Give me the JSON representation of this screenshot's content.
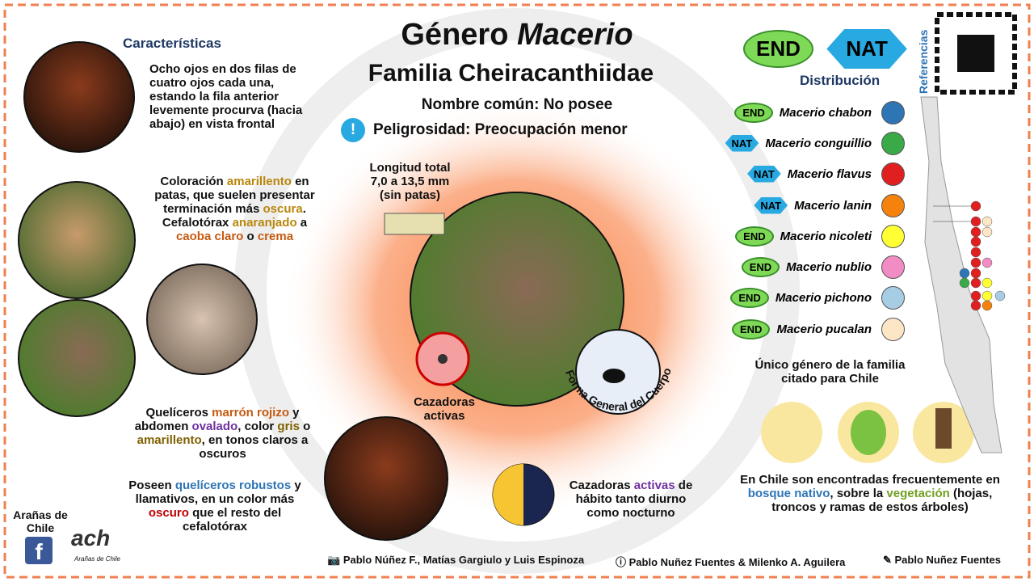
{
  "header": {
    "title_prefix": "Género",
    "title_genus": "Macerio",
    "family": "Familia Cheiracanthiidae",
    "common_name": "Nombre común: No posee",
    "danger_label": "Peligrosidad:",
    "danger_value": "Preocupación menor"
  },
  "characteristics": {
    "title": "Características",
    "paragraphs": [
      [
        {
          "text": "Ocho ojos en dos filas de cuatro ojos cada una, estando la fila anterior levemente procurva (hacia abajo) en vista frontal"
        }
      ],
      [
        {
          "text": "Coloración "
        },
        {
          "text": "amarillento",
          "color": "#b8860b"
        },
        {
          "text": " en patas, que suelen presentar terminación más "
        },
        {
          "text": "oscura",
          "color": "#b8860b"
        },
        {
          "text": ". Cefalotórax "
        },
        {
          "text": "anaranjado",
          "color": "#b8860b"
        },
        {
          "text": " a "
        },
        {
          "text": "caoba claro",
          "color": "#c55a11"
        },
        {
          "text": " o "
        },
        {
          "text": "crema",
          "color": "#c55a11"
        }
      ],
      [
        {
          "text": "Quelíceros "
        },
        {
          "text": "marrón rojizo",
          "color": "#c55a11"
        },
        {
          "text": " y abdomen "
        },
        {
          "text": "ovalado",
          "color": "#7030a0"
        },
        {
          "text": ", color "
        },
        {
          "text": "gris",
          "color": "#7f6000"
        },
        {
          "text": " o "
        },
        {
          "text": "amarillento",
          "color": "#7f6000"
        },
        {
          "text": ", en tonos claros a oscuros"
        }
      ],
      [
        {
          "text": "Poseen "
        },
        {
          "text": "quelíceros robustos",
          "color": "#2e75b6"
        },
        {
          "text": " y llamativos, en un color más "
        },
        {
          "text": "oscuro",
          "color": "#c00000"
        },
        {
          "text": " que el resto del cefalotórax"
        }
      ]
    ]
  },
  "body": {
    "length": "Longitud total 7,0 a 13,5 mm (sin patas)",
    "hunters": "Cazadoras activas",
    "body_shape": "Forma General del Cuerpo",
    "activity": [
      {
        "text": "Cazadoras "
      },
      {
        "text": "activas",
        "color": "#7030a0"
      },
      {
        "text": " de hábito tanto diurno como nocturno"
      }
    ]
  },
  "distribution": {
    "badges": [
      "END",
      "NAT"
    ],
    "references": "Referencias",
    "title": "Distribución",
    "species": [
      {
        "status": "END",
        "name": "Macerio chabon",
        "color": "#2e75b6"
      },
      {
        "status": "NAT",
        "name": "Macerio conguillio",
        "color": "#3aaa48"
      },
      {
        "status": "NAT",
        "name": "Macerio flavus",
        "color": "#e02020"
      },
      {
        "status": "NAT",
        "name": "Macerio lanin",
        "color": "#f5820d"
      },
      {
        "status": "END",
        "name": "Macerio nicoleti",
        "color": "#ffff33"
      },
      {
        "status": "END",
        "name": "Macerio nublio",
        "color": "#f28cc4"
      },
      {
        "status": "END",
        "name": "Macerio pichono",
        "color": "#a6cde3"
      },
      {
        "status": "END",
        "name": "Macerio pucalan",
        "color": "#fde6c6"
      }
    ],
    "note": "Único género de la familia citado para Chile",
    "habitat": [
      {
        "text": "En Chile son encontradas frecuentemente en "
      },
      {
        "text": "bosque nativo",
        "color": "#2e75b6"
      },
      {
        "text": ", sobre la "
      },
      {
        "text": "vegetación",
        "color": "#70a020"
      },
      {
        "text": " (hojas, troncos y ramas de estos árboles)"
      }
    ]
  },
  "footer": {
    "brand": "Arañas de Chile",
    "logo": "ach",
    "logo_small": "Arañas de Chile",
    "photo_credit": "Pablo Núñez F., Matías Gargiulo y Luis Espinoza",
    "info_credit": "Pablo Nuñez Fuentes & Milenko A. Aguilera",
    "art_credit": "Pablo Nuñez Fuentes"
  }
}
